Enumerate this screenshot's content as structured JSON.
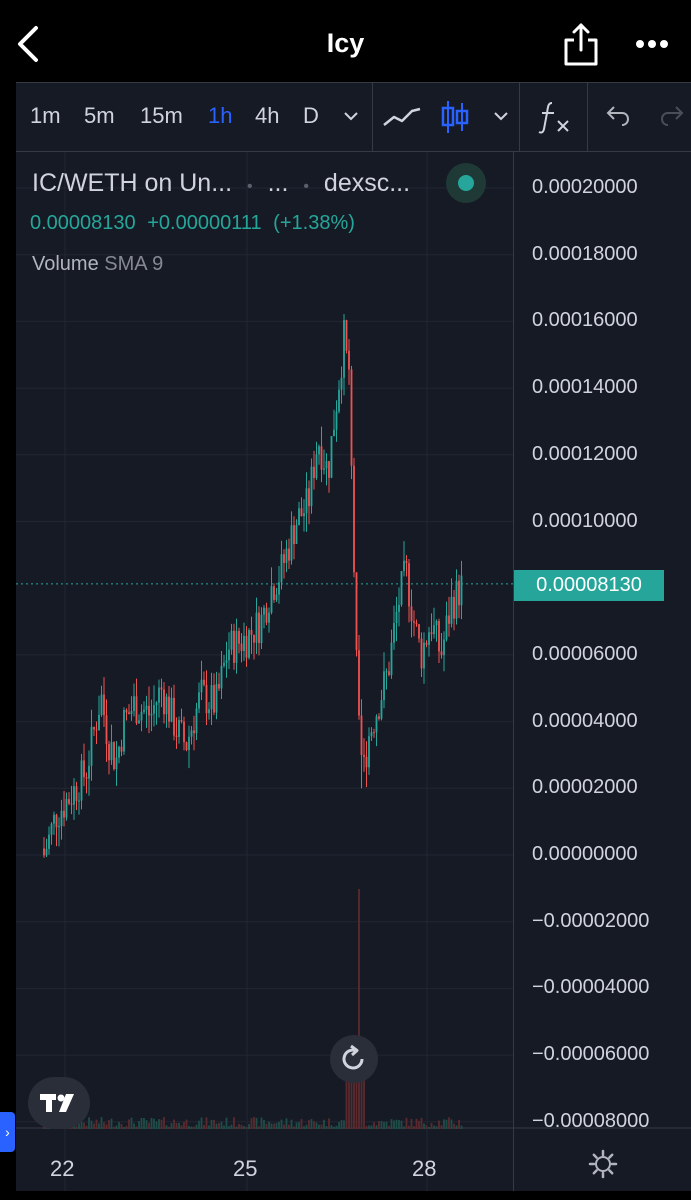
{
  "app": {
    "title": "Icy"
  },
  "toolbar": {
    "timeframes": [
      "1m",
      "5m",
      "15m",
      "1h",
      "4h",
      "D"
    ],
    "active_timeframe": "1h"
  },
  "legend": {
    "symbol": "IC/WETH on Un...",
    "exchange": "dexsc...",
    "dots1": "•",
    "ellipsis": "...",
    "dots2": "•",
    "price": "0.00008130",
    "change": "+0.00000111",
    "change_pct": "(+1.38%)",
    "volume_label": "Volume",
    "sma_label": "SMA 9"
  },
  "colors": {
    "up": "#26a69a",
    "down": "#ef5350",
    "accent": "#2962ff",
    "background": "#161a25"
  },
  "chart_data": {
    "type": "candlestick",
    "x_ticks": [
      "22",
      "25",
      "28"
    ],
    "y_ticks": [
      "0.00020000",
      "0.00018000",
      "0.00016000",
      "0.00014000",
      "0.00012000",
      "0.00010000",
      "0.00006000",
      "0.00004000",
      "0.00002000",
      "0.00000000",
      "−0.00002000",
      "−0.00004000",
      "−0.00006000",
      "−0.00008000"
    ],
    "last_price_label": "0.00008130",
    "ylim": [
      -8.5e-05,
      0.00021
    ],
    "grid": true,
    "series_ohlc_trend": [
      [
        "2022-day21.5",
        0.0,
        1.2e-05
      ],
      [
        "day22",
        1.2e-05,
        2.2e-05
      ],
      [
        "day22.5",
        2.2e-05,
        5e-05
      ],
      [
        "day23",
        5e-05,
        2.8e-05
      ],
      [
        "day23.5",
        2.8e-05,
        5e-05
      ],
      [
        "day24",
        5e-05,
        3.8e-05
      ],
      [
        "day24.5",
        3.8e-05,
        5e-05
      ],
      [
        "day25",
        5e-05,
        6.8e-05
      ],
      [
        "day25.5",
        6.8e-05,
        8.8e-05
      ],
      [
        "day26",
        8.8e-05,
        0.000115
      ],
      [
        "day26.3",
        0.000115,
        0.000155
      ],
      [
        "day26.7",
        0.000155,
        2e-05
      ],
      [
        "day27",
        2e-05,
        6e-05
      ],
      [
        "day27.5",
        6e-05,
        8.5e-05
      ],
      [
        "day28",
        8.5e-05,
        6e-05
      ],
      [
        "day28.5",
        6e-05,
        8.3e-05
      ]
    ]
  }
}
